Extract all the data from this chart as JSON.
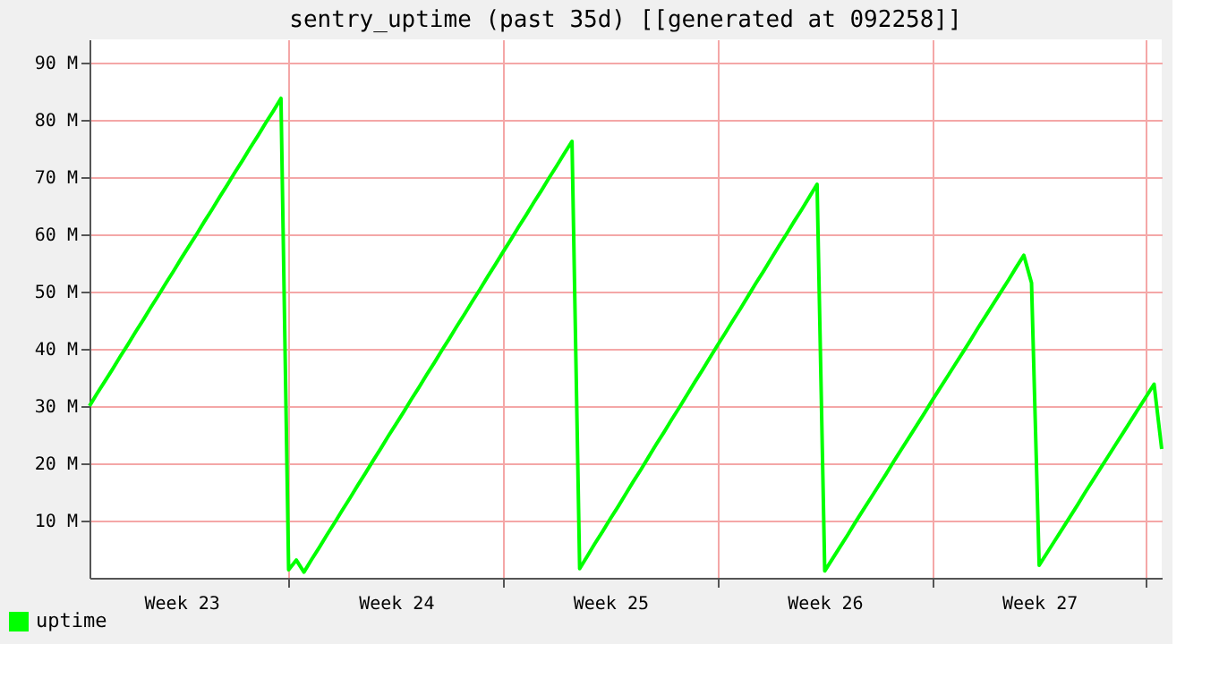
{
  "chart_data": {
    "type": "line",
    "title": "sentry_uptime (past 35d) [[generated at 092258]]",
    "categories": [
      null,
      null,
      null,
      null,
      null,
      null,
      null,
      null,
      null,
      null,
      null,
      null,
      "Week 23",
      null,
      null,
      null,
      null,
      null,
      null,
      null,
      null,
      null,
      null,
      null,
      null,
      null,
      null,
      null,
      null,
      null,
      null,
      null,
      null,
      null,
      null,
      null,
      null,
      null,
      null,
      null,
      "Week 24",
      null,
      null,
      null,
      null,
      null,
      null,
      null,
      null,
      null,
      null,
      null,
      null,
      null,
      null,
      null,
      null,
      null,
      null,
      null,
      null,
      null,
      null,
      null,
      null,
      null,
      null,
      null,
      "Week 25",
      null,
      null,
      null,
      null,
      null,
      null,
      null,
      null,
      null,
      null,
      null,
      null,
      null,
      null,
      null,
      null,
      null,
      null,
      null,
      null,
      null,
      null,
      null,
      null,
      null,
      null,
      null,
      "Week 26",
      null,
      null,
      null,
      null,
      null,
      null,
      null,
      null,
      null,
      null,
      null,
      null,
      null,
      null,
      null,
      null,
      null,
      null,
      null,
      null,
      null,
      null,
      null,
      null,
      null,
      null,
      null,
      "Week 27",
      null,
      null,
      null,
      null,
      null,
      null,
      null,
      null,
      null,
      null,
      null,
      null,
      null,
      null,
      null,
      null
    ],
    "series": [
      {
        "name": "uptime",
        "color": "#00ff00",
        "values": [
          30,
          32.2,
          34.3,
          36.4,
          38.6,
          40.7,
          42.9,
          45,
          47.2,
          49.3,
          51.5,
          53.6,
          55.8,
          57.9,
          60,
          62.2,
          64.3,
          66.5,
          68.6,
          70.8,
          72.9,
          75.1,
          77.2,
          79.4,
          81.5,
          83.7,
          1.4,
          3.1,
          1,
          3.2,
          5.3,
          7.5,
          9.6,
          11.8,
          13.9,
          16.1,
          18.2,
          20.4,
          22.5,
          24.7,
          26.8,
          28.9,
          31.1,
          33.2,
          35.4,
          37.5,
          39.7,
          41.8,
          44,
          46.1,
          48.3,
          50.4,
          52.6,
          54.7,
          56.9,
          59,
          61.2,
          63.3,
          65.5,
          67.6,
          69.8,
          71.9,
          74.1,
          76.2,
          1.6,
          3.8,
          6,
          8.1,
          10.3,
          12.4,
          14.6,
          16.8,
          18.9,
          21.1,
          23.3,
          25.4,
          27.6,
          29.7,
          31.9,
          34.1,
          36.2,
          38.4,
          40.6,
          42.7,
          44.9,
          47,
          49.2,
          51.4,
          53.5,
          55.7,
          57.9,
          60,
          62.2,
          64.3,
          66.5,
          68.7,
          1.2,
          3.3,
          5.4,
          7.5,
          9.7,
          11.8,
          13.9,
          16,
          18.1,
          20.3,
          22.4,
          24.5,
          26.6,
          28.7,
          30.9,
          33,
          35.1,
          37.2,
          39.3,
          41.4,
          43.6,
          45.7,
          47.8,
          49.9,
          52,
          54.2,
          56.3,
          51.5,
          2.2,
          4.3,
          6.4,
          8.5,
          10.6,
          12.7,
          14.9,
          17,
          19.1,
          21.2,
          23.3,
          25.4,
          27.5,
          29.6,
          31.7,
          33.8,
          22.5
        ]
      }
    ],
    "ylim": [
      0,
      94
    ],
    "yticks": [
      {
        "value": 10,
        "label": "10 M"
      },
      {
        "value": 20,
        "label": "20 M"
      },
      {
        "value": 30,
        "label": "30 M"
      },
      {
        "value": 40,
        "label": "40 M"
      },
      {
        "value": 50,
        "label": "50 M"
      },
      {
        "value": 60,
        "label": "60 M"
      },
      {
        "value": 70,
        "label": "70 M"
      },
      {
        "value": 80,
        "label": "80 M"
      },
      {
        "value": 90,
        "label": "90 M"
      }
    ],
    "grid": true,
    "legend": "bottom left",
    "marker": "none",
    "line_style": "solid"
  }
}
